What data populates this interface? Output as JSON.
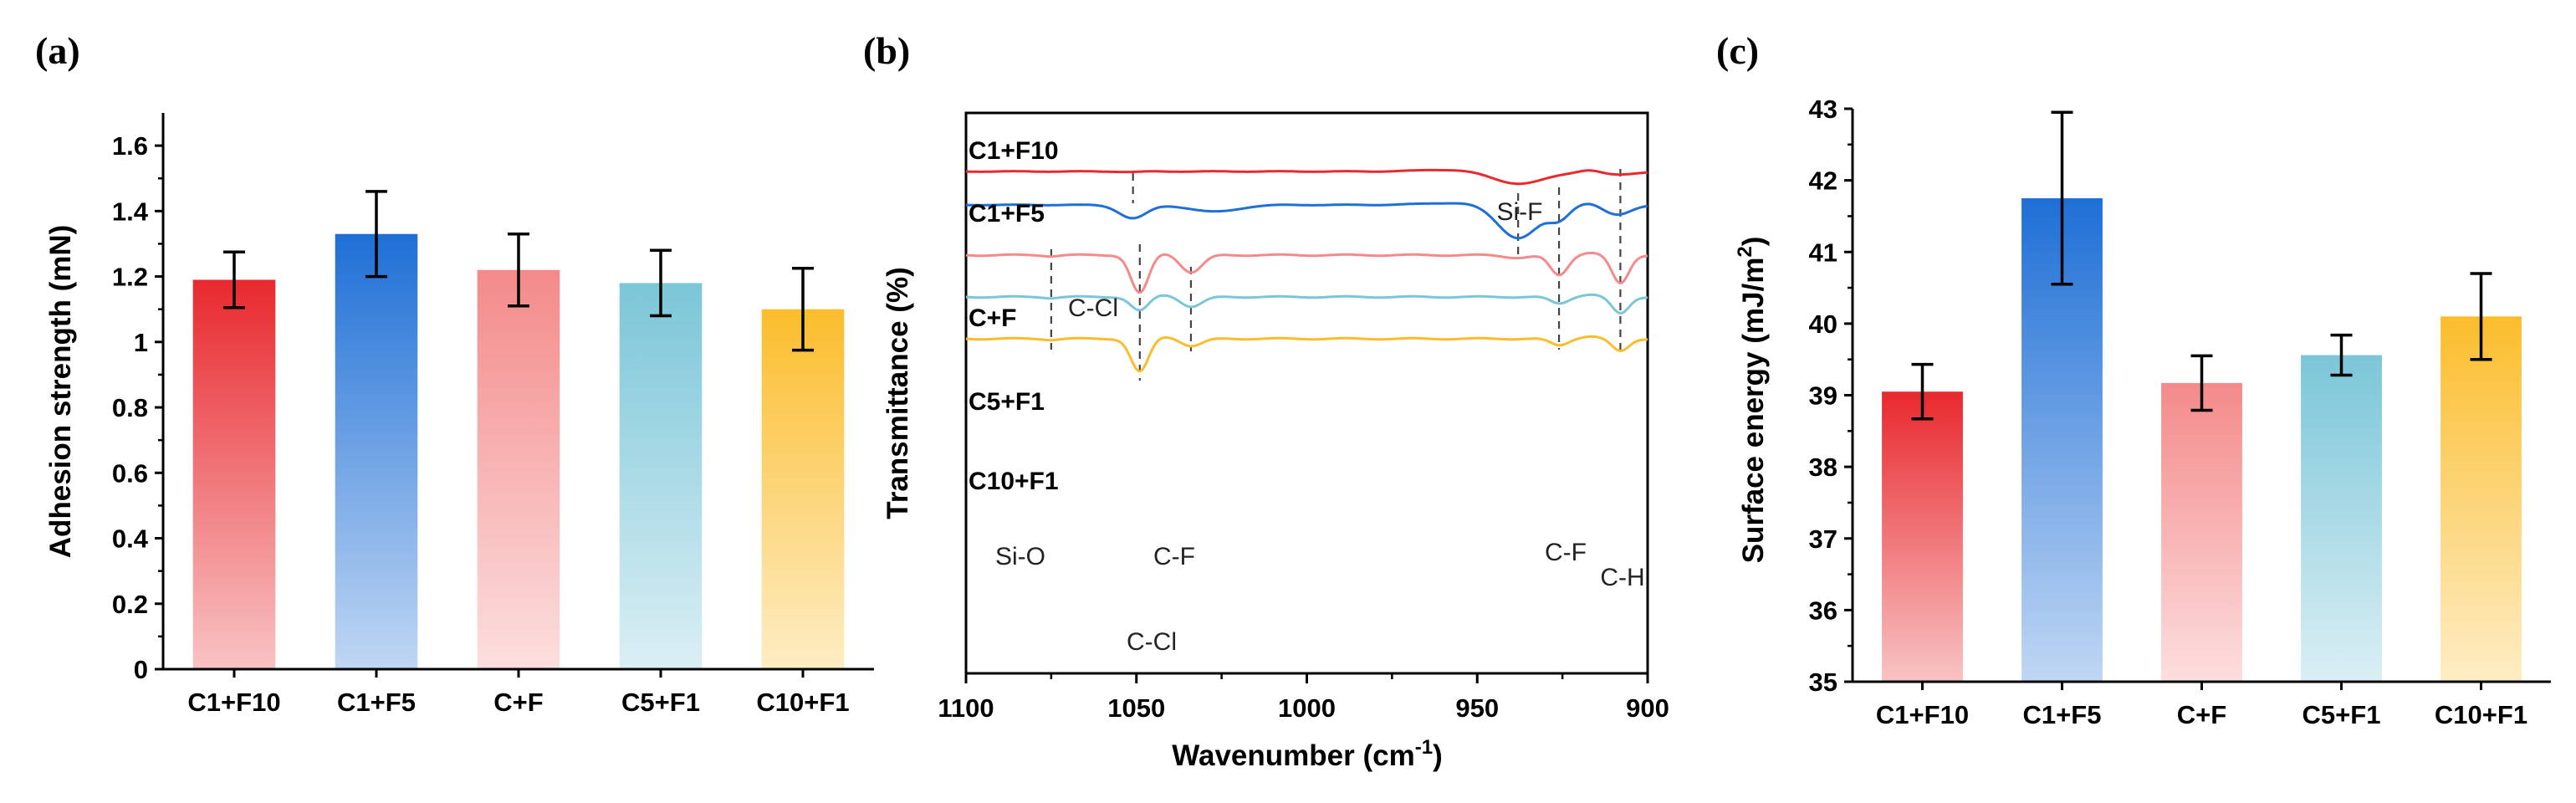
{
  "chart_data": [
    {
      "panel": "(a)",
      "type": "bar",
      "title": "",
      "xlabel": "",
      "ylabel": "Adhesion strength (mN)",
      "categories": [
        "C1+F10",
        "C1+F5",
        "C+F",
        "C5+F1",
        "C10+F1"
      ],
      "values": [
        1.19,
        1.33,
        1.22,
        1.18,
        1.1
      ],
      "errors": [
        0.085,
        0.13,
        0.11,
        0.1,
        0.125
      ],
      "colors": [
        "#e8292e",
        "#1e6fd6",
        "#f48a8a",
        "#7bc6d8",
        "#fbbd2d"
      ],
      "ylim": [
        0,
        1.7
      ],
      "yticks": [
        0,
        0.2,
        0.4,
        0.6,
        0.8,
        1,
        1.2,
        1.4,
        1.6
      ],
      "ytick_labels": [
        "0",
        "0.2",
        "0.4",
        "0.6",
        "0.8",
        "1",
        "1.2",
        "1.4",
        "1.6"
      ],
      "grid": false
    },
    {
      "panel": "(b)",
      "type": "line",
      "title": "",
      "xlabel": "Wavenumber (cm",
      "xlabel_sup": "-1",
      "xlabel_end": ")",
      "ylabel": "Transmittance (%)",
      "xlim": [
        1100,
        900
      ],
      "xticks": [
        1100,
        1050,
        1000,
        950,
        900
      ],
      "series": [
        {
          "name": "C1+F10",
          "color": "#e8292e",
          "baseline": 100,
          "dips": [
            [
              1051,
              0.6,
              3
            ],
            [
              938,
              15,
              8
            ],
            [
              909,
              4,
              5
            ]
          ]
        },
        {
          "name": "C1+F5",
          "color": "#1e6fd6",
          "baseline": 60,
          "dips": [
            [
              1051,
              16,
              4
            ],
            [
              1027,
              8,
              7
            ],
            [
              938,
              40,
              6
            ],
            [
              926,
              15,
              3
            ],
            [
              909,
              12,
              4
            ]
          ]
        },
        {
          "name": "C+F",
          "color": "#f48a8a",
          "baseline": 0,
          "dips": [
            [
              1075,
              1,
              2
            ],
            [
              1049,
              46,
              2.6
            ],
            [
              1034,
              22,
              3.2
            ],
            [
              938,
              3,
              4
            ],
            [
              926,
              24,
              2.6
            ],
            [
              908,
              34,
              2.5
            ]
          ]
        },
        {
          "name": "C5+F1",
          "color": "#7bc6d8",
          "baseline": -50,
          "dips": [
            [
              1075,
              1,
              2
            ],
            [
              1049,
              17,
              2.6
            ],
            [
              1034,
              13,
              3.2
            ],
            [
              926,
              8,
              2.6
            ],
            [
              908,
              20,
              2.5
            ]
          ]
        },
        {
          "name": "C10+F1",
          "color": "#fbbd2d",
          "baseline": -100,
          "dips": [
            [
              1075,
              1,
              2
            ],
            [
              1049,
              40,
              2.6
            ],
            [
              1034,
              10,
              3.2
            ],
            [
              926,
              8,
              2.6
            ],
            [
              908,
              15,
              2.5
            ]
          ]
        }
      ],
      "annotations": [
        {
          "text": "C-Cl",
          "x": 1051
        },
        {
          "text": "Si-F",
          "x": 938
        },
        {
          "text": "Si-O",
          "x": 1075
        },
        {
          "text": "C-F",
          "x": 1034
        },
        {
          "text": "C-Cl",
          "x": 1049
        },
        {
          "text": "C-F",
          "x": 926
        },
        {
          "text": "C-H",
          "x": 908
        }
      ],
      "grid": false
    },
    {
      "panel": "(c)",
      "type": "bar",
      "title": "",
      "xlabel": "",
      "ylabel": "Surface energy (mJ/m",
      "ylabel_sup": "2",
      "ylabel_end": ")",
      "categories": [
        "C1+F10",
        "C1+F5",
        "C+F",
        "C5+F1",
        "C10+F1"
      ],
      "values": [
        39.05,
        41.75,
        39.17,
        39.56,
        40.1
      ],
      "errors": [
        0.38,
        1.2,
        0.38,
        0.28,
        0.6
      ],
      "colors": [
        "#e8292e",
        "#1e6fd6",
        "#f48a8a",
        "#7bc6d8",
        "#fbbd2d"
      ],
      "ylim": [
        35,
        43
      ],
      "yticks": [
        35,
        36,
        37,
        38,
        39,
        40,
        41,
        42,
        43
      ],
      "ytick_labels": [
        "35",
        "36",
        "37",
        "38",
        "39",
        "40",
        "41",
        "42",
        "43"
      ],
      "grid": false
    }
  ]
}
